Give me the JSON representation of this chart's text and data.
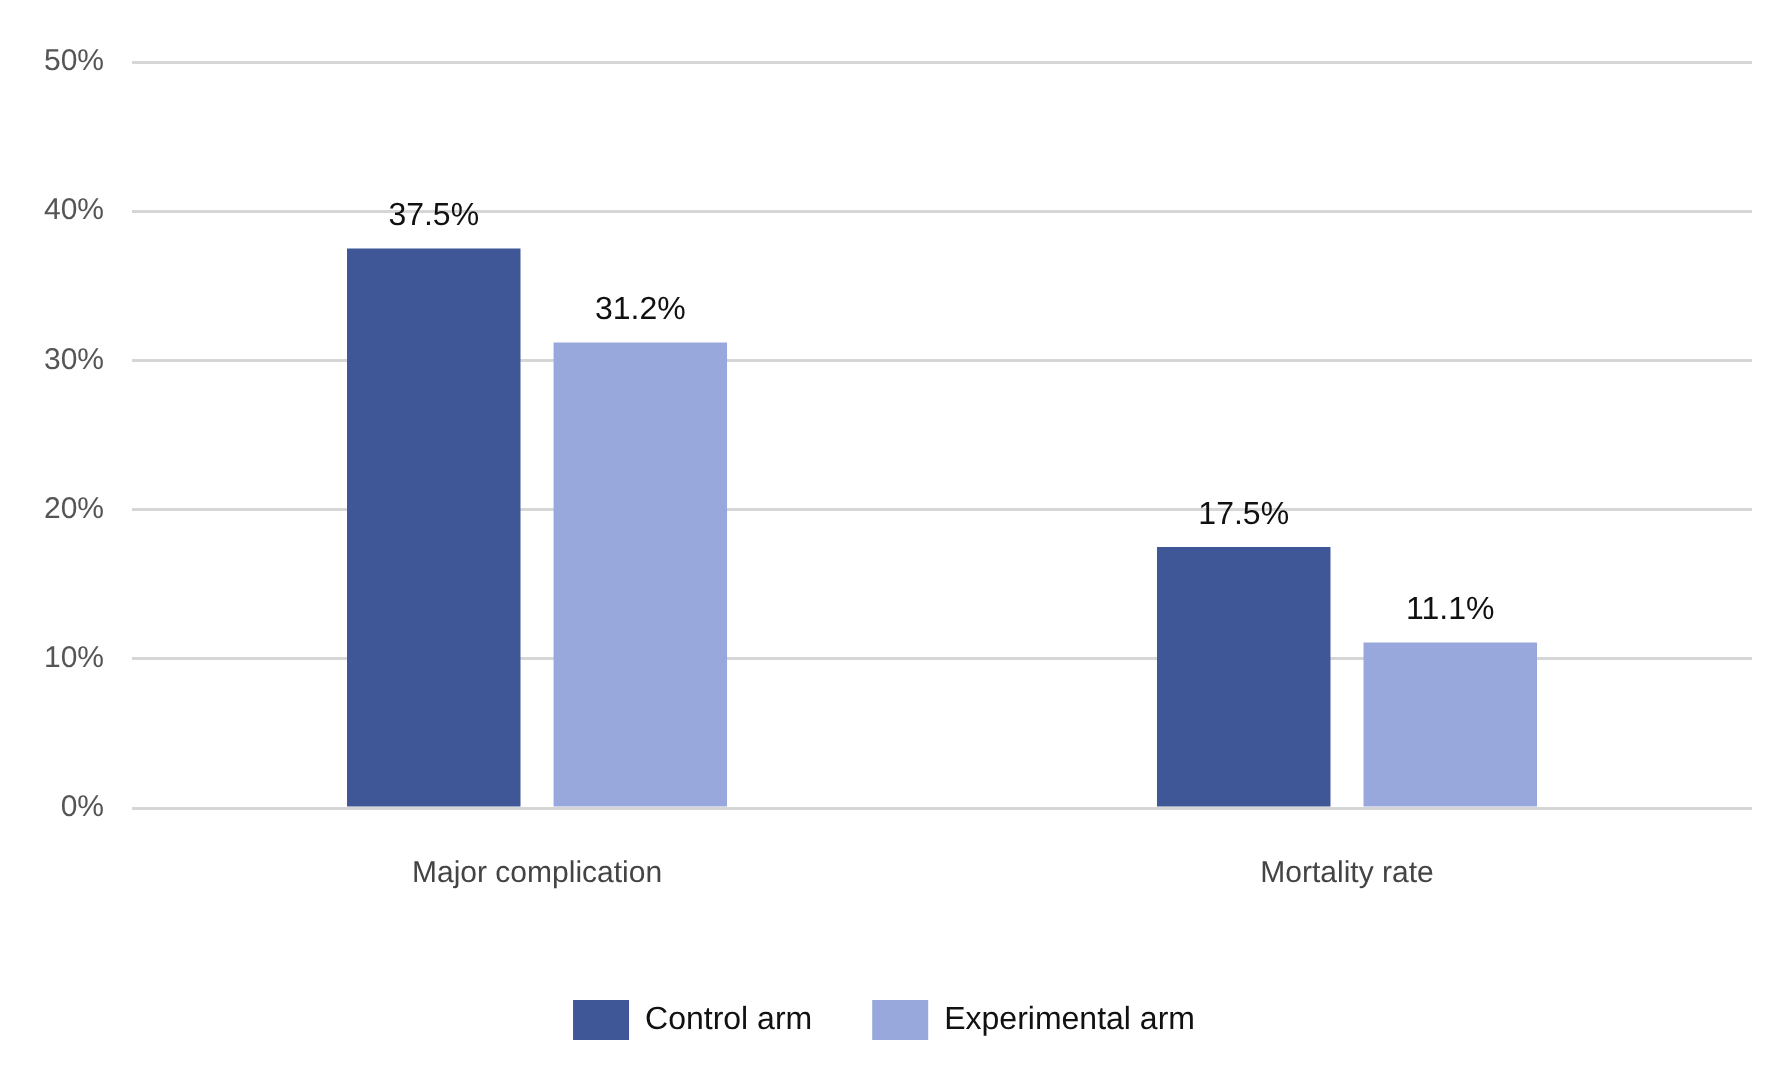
{
  "chart_data": {
    "type": "bar",
    "categories": [
      "Major complication",
      "Mortality rate"
    ],
    "series": [
      {
        "name": "Control arm",
        "color": "#3f5797",
        "values": [
          37.5,
          17.5
        ],
        "value_labels": [
          "37.5%",
          "17.5%"
        ]
      },
      {
        "name": "Experimental arm",
        "color": "#98a8dc",
        "values": [
          31.2,
          11.1
        ],
        "value_labels": [
          "31.2%",
          "11.1%"
        ]
      }
    ],
    "ylim": [
      0,
      50
    ],
    "yticks": [
      {
        "value": 0,
        "label": "0%"
      },
      {
        "value": 10,
        "label": "10%"
      },
      {
        "value": 20,
        "label": "20%"
      },
      {
        "value": 30,
        "label": "30%"
      },
      {
        "value": 40,
        "label": "40%"
      },
      {
        "value": 50,
        "label": "50%"
      }
    ],
    "grid": "y",
    "legend": "bottom"
  }
}
